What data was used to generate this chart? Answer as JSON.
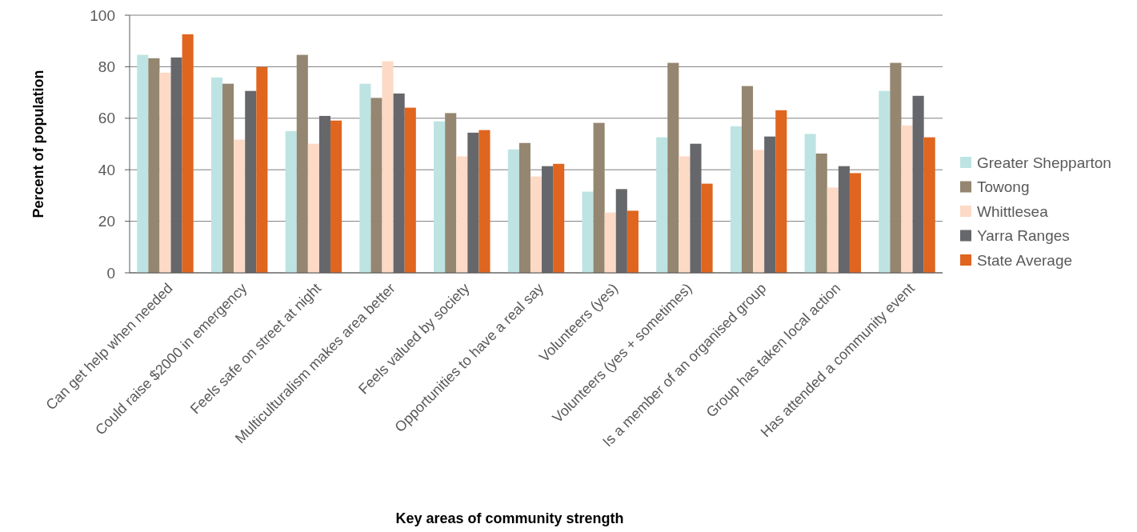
{
  "chart_data": {
    "type": "bar",
    "xlabel": "Key areas of community strength",
    "ylabel": "Percent of population",
    "categories": [
      "Can get help when needed",
      "Could raise $2000 in emergency",
      "Feels safe on street at night",
      "Multiculturalism makes area better",
      "Feels valued by society",
      "Opportunities to have a real say",
      "Volunteers (yes)",
      "Volunteers (yes + sometimes)",
      "Is a member of an organised group",
      "Group has taken local action",
      "Has attended a community event"
    ],
    "series": [
      {
        "name": "Greater Shepparton",
        "color": "#bde4e3",
        "values": [
          84.6,
          75.8,
          55.0,
          73.4,
          58.8,
          47.9,
          31.5,
          52.6,
          56.9,
          53.9,
          70.6
        ]
      },
      {
        "name": "Towong",
        "color": "#948670",
        "values": [
          83.3,
          73.4,
          84.6,
          67.9,
          62.0,
          50.4,
          58.2,
          81.5,
          72.5,
          46.3,
          81.5
        ]
      },
      {
        "name": "Whittlesea",
        "color": "#fddac6",
        "values": [
          77.7,
          51.7,
          50.1,
          82.1,
          45.2,
          37.4,
          23.4,
          45.2,
          47.7,
          33.1,
          57.2
        ]
      },
      {
        "name": "Yarra Ranges",
        "color": "#66676b",
        "values": [
          83.6,
          70.6,
          60.9,
          69.6,
          54.4,
          41.4,
          32.5,
          50.1,
          52.9,
          41.4,
          68.7
        ]
      },
      {
        "name": "State Average",
        "color": "#e0651f",
        "values": [
          92.6,
          79.9,
          59.1,
          64.1,
          55.4,
          42.3,
          24.1,
          34.6,
          63.1,
          38.7,
          52.6
        ]
      }
    ],
    "ylim": [
      0,
      100
    ],
    "yticks": [
      0,
      20,
      40,
      60,
      80,
      100
    ],
    "grid": "y",
    "legend": "right"
  }
}
